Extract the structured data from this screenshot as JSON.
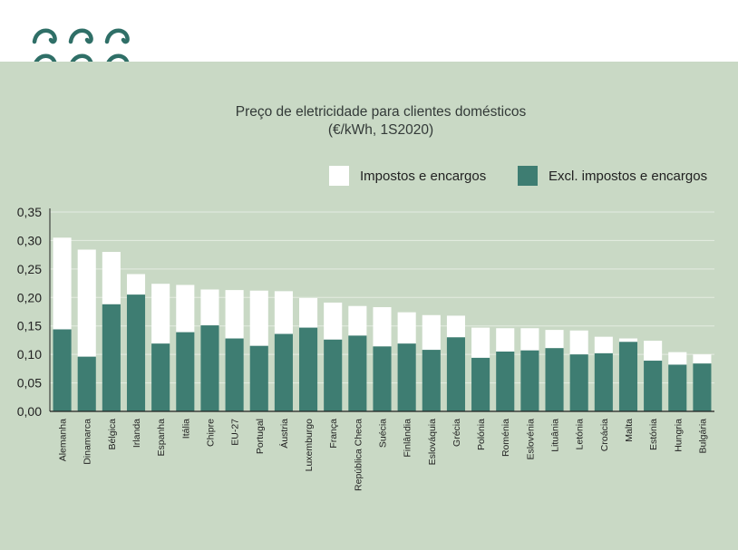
{
  "title": "Preço de eletricidade para clientes domésticos",
  "subtitle": "(€/kWh, 1S2020)",
  "legend": {
    "taxes_label": "Impostos e encargos",
    "excl_label": "Excl. impostos e encargos"
  },
  "colors": {
    "panel": "#c9d9c5",
    "excl": "#3e7d72",
    "taxes": "#ffffff",
    "brand": "#2f6f67",
    "text": "#222222"
  },
  "chart_data": {
    "type": "bar",
    "stacked": true,
    "title": "Preço de eletricidade para clientes domésticos",
    "subtitle": "(€/kWh, 1S2020)",
    "ylim": [
      0,
      0.35
    ],
    "yticks": [
      "0,00",
      "0,05",
      "0,10",
      "0,15",
      "0,20",
      "0,25",
      "0,30",
      "0,35"
    ],
    "grid": true,
    "legend_position": "top-right",
    "categories": [
      "Alemanha",
      "Dinamarca",
      "Bélgica",
      "Irlanda",
      "Espanha",
      "Itália",
      "Chipre",
      "EU-27",
      "Portugal",
      "Áustria",
      "Luxemburgo",
      "França",
      "República Checa",
      "Suécia",
      "Finlândia",
      "Eslováquia",
      "Grécia",
      "Polónia",
      "Roménia",
      "Eslovénia",
      "Lituânia",
      "Letónia",
      "Croácia",
      "Malta",
      "Estónia",
      "Hungria",
      "Bulgária"
    ],
    "series": [
      {
        "name": "Excl. impostos e encargos",
        "values": [
          0.144,
          0.096,
          0.188,
          0.205,
          0.119,
          0.139,
          0.151,
          0.128,
          0.115,
          0.136,
          0.147,
          0.126,
          0.133,
          0.114,
          0.119,
          0.108,
          0.13,
          0.094,
          0.105,
          0.107,
          0.111,
          0.1,
          0.102,
          0.122,
          0.089,
          0.082,
          0.084
        ]
      },
      {
        "name": "Impostos e encargos",
        "values": [
          0.161,
          0.188,
          0.092,
          0.036,
          0.105,
          0.083,
          0.063,
          0.085,
          0.097,
          0.075,
          0.052,
          0.065,
          0.052,
          0.069,
          0.055,
          0.061,
          0.038,
          0.053,
          0.041,
          0.039,
          0.032,
          0.042,
          0.029,
          0.006,
          0.035,
          0.022,
          0.016
        ]
      }
    ]
  }
}
